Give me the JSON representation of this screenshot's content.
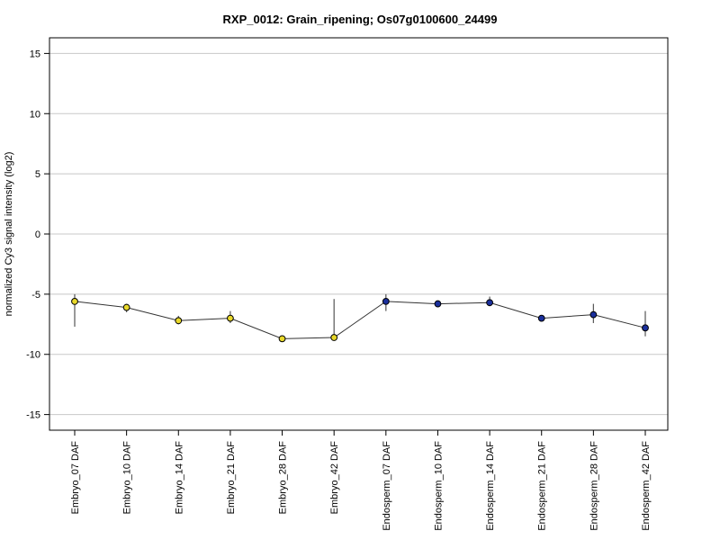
{
  "chart_data": {
    "type": "line",
    "title": "RXP_0012: Grain_ripening; Os07g0100600_24499",
    "xlabel": "",
    "ylabel": "normalized Cy3 signal intensity (log2)",
    "ylim": [
      -16.3,
      16.3
    ],
    "yticks": [
      -15,
      -10,
      -5,
      0,
      5,
      10,
      15
    ],
    "grid": true,
    "categories": [
      "Embryo_07 DAF",
      "Embryo_10 DAF",
      "Embryo_14 DAF",
      "Embryo_21 DAF",
      "Embryo_28 DAF",
      "Embryo_42 DAF",
      "Endosperm_07 DAF",
      "Endosperm_10 DAF",
      "Endosperm_14 DAF",
      "Endosperm_21 DAF",
      "Endosperm_28 DAF",
      "Endosperm_42 DAF"
    ],
    "series": [
      {
        "values": [
          -5.6,
          -6.1,
          -7.2,
          -7.0,
          -8.7,
          -8.6,
          -5.6,
          -5.8,
          -5.7,
          -7.0,
          -6.7,
          -7.8
        ],
        "err_low": [
          -7.7,
          -6.5,
          -7.5,
          -7.4,
          -8.8,
          -8.7,
          -6.4,
          -5.9,
          -6.0,
          -7.1,
          -7.4,
          -8.5
        ],
        "err_high": [
          -5.0,
          -5.8,
          -6.8,
          -6.4,
          -8.5,
          -5.4,
          -5.0,
          -5.6,
          -5.2,
          -6.8,
          -5.8,
          -6.4
        ],
        "colors": [
          "#e8d82a",
          "#e8d82a",
          "#e8d82a",
          "#e8d82a",
          "#e8d82a",
          "#e8d82a",
          "#1a2f9c",
          "#1a2f9c",
          "#1a2f9c",
          "#1a2f9c",
          "#1a2f9c",
          "#1a2f9c"
        ]
      }
    ]
  }
}
